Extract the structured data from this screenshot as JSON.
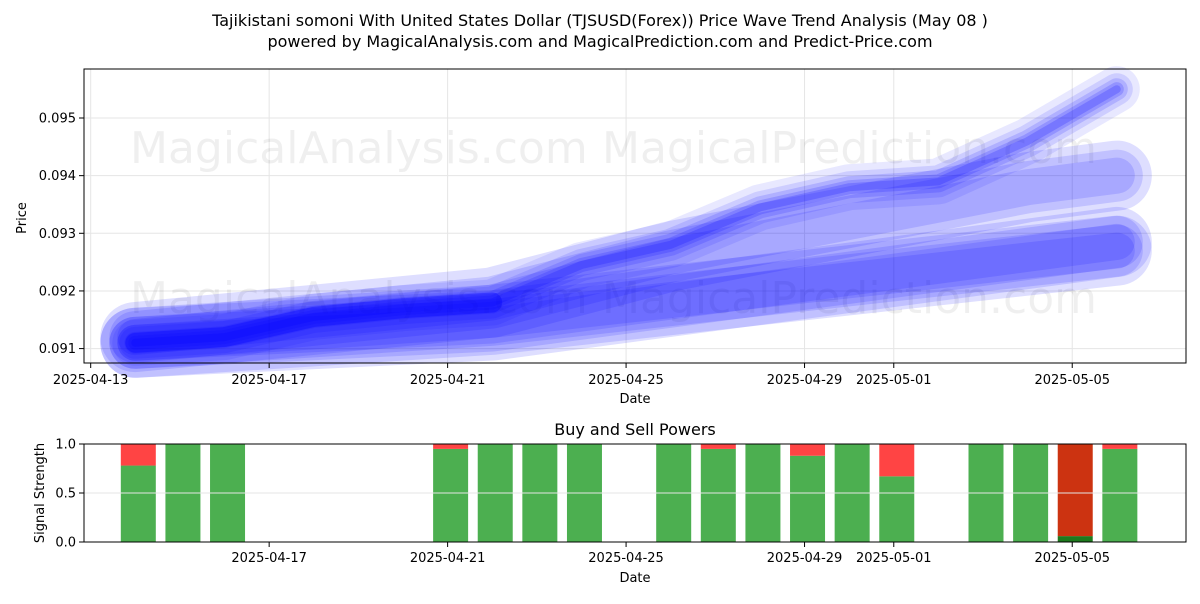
{
  "title_line1": "Tajikistani somoni With United States Dollar (TJSUSD(Forex)) Price Wave Trend Analysis (May 08 )",
  "title_line2": "powered by MagicalAnalysis.com and MagicalPrediction.com and Predict-Price.com",
  "watermarks": [
    "MagicalAnalysis.com",
    "MagicalPrediction.com"
  ],
  "chart_data": [
    {
      "type": "line",
      "xlabel": "Date",
      "ylabel": "Price",
      "ylim": [
        0.09075,
        0.09585
      ],
      "xlim": [
        "2025-04-13",
        "2025-05-07"
      ],
      "x_tick_labels": [
        "2025-04-13",
        "2025-04-17",
        "2025-04-21",
        "2025-04-25",
        "2025-04-29",
        "2025-05-01",
        "2025-05-05"
      ],
      "y_tick_labels": [
        "0.091",
        "0.092",
        "0.093",
        "0.094",
        "0.095"
      ],
      "grid": true,
      "color": "#0000ff",
      "series": [
        {
          "x": [
            "2025-04-14",
            "2025-04-16",
            "2025-04-18",
            "2025-04-20",
            "2025-04-22",
            "2025-04-24",
            "2025-04-26",
            "2025-04-28",
            "2025-04-30",
            "2025-05-02",
            "2025-05-04",
            "2025-05-06"
          ],
          "y": [
            0.0911,
            0.0912,
            0.09155,
            0.0917,
            0.0918,
            0.09245,
            0.0928,
            0.09345,
            0.0938,
            0.0939,
            0.0946,
            0.0955
          ]
        },
        {
          "x": [
            "2025-04-14",
            "2025-04-18",
            "2025-04-22",
            "2025-04-26",
            "2025-04-30",
            "2025-05-04",
            "2025-05-06"
          ],
          "y": [
            0.0912,
            0.0915,
            0.0918,
            0.0926,
            0.0932,
            0.0938,
            0.094
          ]
        },
        {
          "x": [
            "2025-04-14",
            "2025-04-22",
            "2025-05-06"
          ],
          "y": [
            0.0911,
            0.0914,
            0.09285
          ]
        },
        {
          "x": [
            "2025-04-14",
            "2025-04-22",
            "2025-05-06"
          ],
          "y": [
            0.0911,
            0.0915,
            0.0927
          ]
        }
      ]
    },
    {
      "type": "bar",
      "title": "Buy and Sell Powers",
      "xlabel": "Date",
      "ylabel": "Signal Strength",
      "ylim": [
        0,
        1.0
      ],
      "y_tick_labels": [
        "0.0",
        "0.5",
        "1.0"
      ],
      "x_tick_labels": [
        "2025-04-17",
        "2025-04-21",
        "2025-04-25",
        "2025-04-29",
        "2025-05-01",
        "2025-05-05"
      ],
      "colors": {
        "buy": "#4caf50",
        "sell": "#ff4444",
        "sell_strong": "#cc3311",
        "buy_strong": "#1e7a1e"
      },
      "categories": [
        "2025-04-14",
        "2025-04-15",
        "2025-04-16",
        "2025-04-21",
        "2025-04-22",
        "2025-04-23",
        "2025-04-24",
        "2025-04-26",
        "2025-04-27",
        "2025-04-28",
        "2025-04-29",
        "2025-04-30",
        "2025-05-01",
        "2025-05-03",
        "2025-05-04",
        "2025-05-05",
        "2025-05-06"
      ],
      "series": [
        {
          "name": "buy",
          "values": [
            0.78,
            1.0,
            1.0,
            0.95,
            1.0,
            1.0,
            1.0,
            1.0,
            0.95,
            1.0,
            0.88,
            1.0,
            0.67,
            1.0,
            1.0,
            0.06,
            0.95
          ]
        },
        {
          "name": "sell",
          "values": [
            0.22,
            0.0,
            0.0,
            0.05,
            0.0,
            0.0,
            0.0,
            0.0,
            0.05,
            0.0,
            0.12,
            0.0,
            0.33,
            0.0,
            0.0,
            0.94,
            0.05
          ]
        }
      ]
    }
  ]
}
